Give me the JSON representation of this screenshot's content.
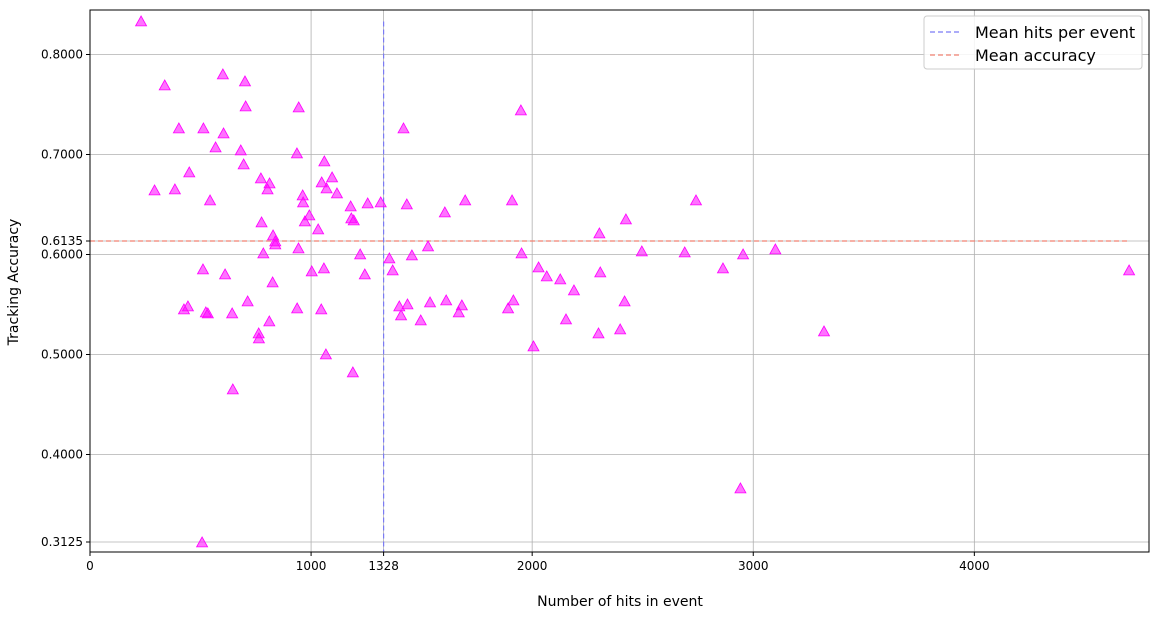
{
  "chart_data": {
    "type": "scatter",
    "title": "",
    "xlabel": "Number of hits in event",
    "ylabel": "Tracking Accuracy",
    "xlim": [
      0,
      4790
    ],
    "ylim": [
      0.3025,
      0.8445
    ],
    "grid": true,
    "legend_position": "top-right",
    "x_ticks": [
      0,
      1000,
      1328,
      2000,
      3000,
      4000
    ],
    "x_tick_labels": [
      "0",
      "1000",
      "1328",
      "2000",
      "3000",
      "4000"
    ],
    "y_ticks": [
      0.3125,
      0.4,
      0.5,
      0.6,
      0.6135,
      0.7,
      0.8
    ],
    "y_tick_labels": [
      "0.3125",
      "0.4000",
      "0.5000",
      "0.6000",
      "0.6135",
      "0.7000",
      "0.8000"
    ],
    "colors": {
      "points": "#ff00ff",
      "mean_hits_line": "#7b7bf5",
      "mean_accuracy_line": "#f08070",
      "grid": "#b0b0b0",
      "axes": "#000000"
    },
    "mean_hits": 1328,
    "mean_accuracy": 0.6135,
    "legend": [
      {
        "label": "Mean hits per event",
        "key": "mean_hits"
      },
      {
        "label": "Mean accuracy",
        "key": "mean_accuracy"
      }
    ],
    "series": [
      {
        "marker": "triangle-up",
        "x": [
          231,
          292,
          338,
          384,
          402,
          425,
          443,
          449,
          507,
          511,
          513,
          524,
          533,
          543,
          568,
          601,
          604,
          611,
          643,
          646,
          682,
          695,
          701,
          704,
          713,
          763,
          764,
          773,
          776,
          784,
          803,
          811,
          812,
          826,
          828,
          838,
          838,
          936,
          937,
          943,
          944,
          962,
          964,
          972,
          992,
          1003,
          1032,
          1046,
          1048,
          1058,
          1060,
          1067,
          1070,
          1095,
          1117,
          1179,
          1182,
          1189,
          1193,
          1222,
          1243,
          1256,
          1315,
          1354,
          1369,
          1399,
          1407,
          1418,
          1433,
          1436,
          1456,
          1496,
          1529,
          1538,
          1605,
          1611,
          1668,
          1682,
          1697,
          1891,
          1909,
          1915,
          1949,
          1952,
          2006,
          2029,
          2066,
          2127,
          2153,
          2189,
          2300,
          2304,
          2308,
          2398,
          2418,
          2424,
          2496,
          2690,
          2741,
          2863,
          2942,
          2954,
          3100,
          3320,
          4700
        ],
        "y": [
          0.833,
          0.664,
          0.769,
          0.665,
          0.726,
          0.545,
          0.548,
          0.682,
          0.312,
          0.585,
          0.726,
          0.542,
          0.541,
          0.654,
          0.707,
          0.78,
          0.721,
          0.58,
          0.541,
          0.465,
          0.704,
          0.69,
          0.773,
          0.748,
          0.553,
          0.521,
          0.516,
          0.676,
          0.632,
          0.601,
          0.665,
          0.533,
          0.671,
          0.572,
          0.619,
          0.61,
          0.613,
          0.701,
          0.546,
          0.606,
          0.747,
          0.659,
          0.652,
          0.633,
          0.639,
          0.583,
          0.625,
          0.545,
          0.672,
          0.586,
          0.693,
          0.5,
          0.666,
          0.677,
          0.661,
          0.648,
          0.636,
          0.482,
          0.634,
          0.6,
          0.58,
          0.651,
          0.652,
          0.596,
          0.584,
          0.548,
          0.539,
          0.726,
          0.65,
          0.55,
          0.599,
          0.534,
          0.608,
          0.552,
          0.642,
          0.554,
          0.542,
          0.549,
          0.654,
          0.546,
          0.654,
          0.554,
          0.744,
          0.601,
          0.508,
          0.587,
          0.578,
          0.575,
          0.535,
          0.564,
          0.521,
          0.621,
          0.582,
          0.525,
          0.553,
          0.635,
          0.603,
          0.602,
          0.654,
          0.586,
          0.366,
          0.6,
          0.605,
          0.523,
          0.584
        ]
      }
    ]
  }
}
